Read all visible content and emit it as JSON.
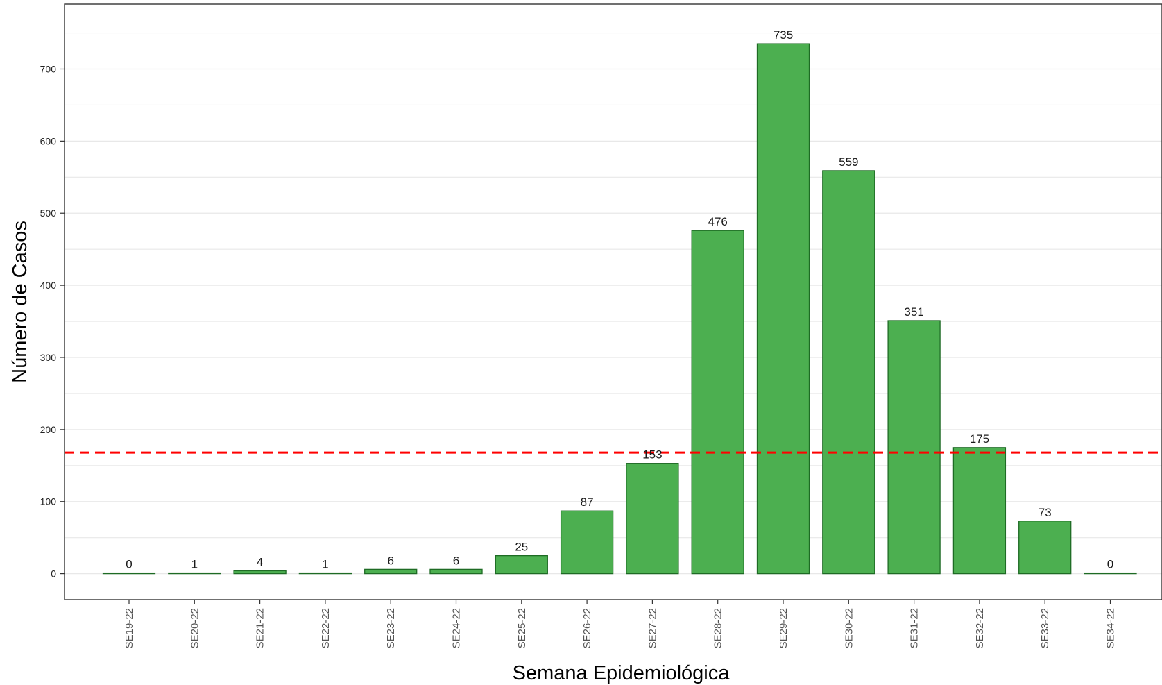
{
  "chart_data": {
    "type": "bar",
    "title": "",
    "xlabel": "Semana Epidemiológica",
    "ylabel": "Número de Casos",
    "categories": [
      "SE19-22",
      "SE20-22",
      "SE21-22",
      "SE22-22",
      "SE23-22",
      "SE24-22",
      "SE25-22",
      "SE26-22",
      "SE27-22",
      "SE28-22",
      "SE29-22",
      "SE30-22",
      "SE31-22",
      "SE32-22",
      "SE33-22",
      "SE34-22"
    ],
    "values": [
      0,
      1,
      4,
      1,
      6,
      6,
      25,
      87,
      153,
      476,
      735,
      559,
      351,
      175,
      73,
      0
    ],
    "yticks": [
      0,
      100,
      200,
      300,
      400,
      500,
      600,
      700
    ],
    "ylim": [
      -36,
      790
    ],
    "threshold": 168,
    "bar_color": "#4caf50",
    "bar_border_color": "#1e6b24",
    "threshold_color": "#ff0000",
    "grid": true
  }
}
